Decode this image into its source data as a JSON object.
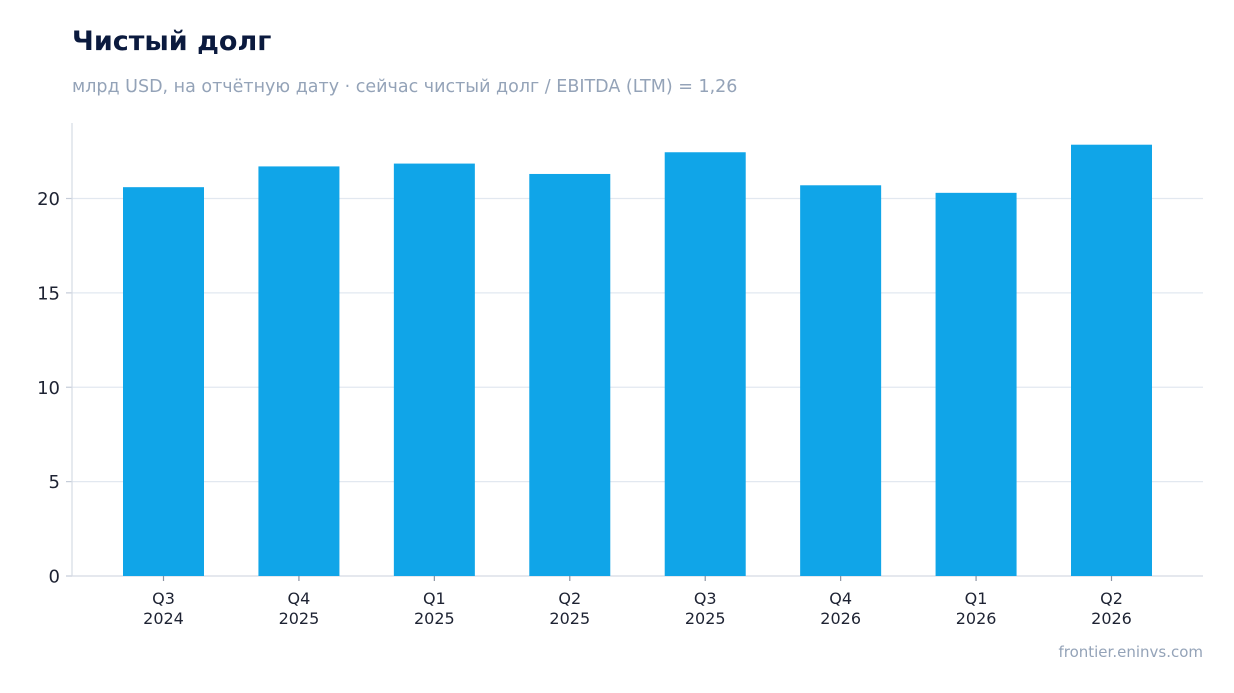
{
  "chart_data": {
    "type": "bar",
    "title": "Чистый долг",
    "subtitle": "млрд USD, на отчётную дату · сейчас чистый долг / EBITDA (LTM) = 1,26",
    "categories": [
      [
        "Q3",
        "2024"
      ],
      [
        "Q4",
        "2025"
      ],
      [
        "Q1",
        "2025"
      ],
      [
        "Q2",
        "2025"
      ],
      [
        "Q3",
        "2025"
      ],
      [
        "Q4",
        "2026"
      ],
      [
        "Q1",
        "2026"
      ],
      [
        "Q2",
        "2026"
      ]
    ],
    "values": [
      20.6,
      21.7,
      21.85,
      21.3,
      22.45,
      20.7,
      20.3,
      22.85
    ],
    "xlabel": "",
    "ylabel": "",
    "ylim": [
      0,
      24
    ],
    "yticks": [
      0,
      5,
      10,
      15,
      20
    ],
    "grid": true,
    "bar_color": "#10a5e8",
    "grid_color": "#e2e8f0"
  },
  "source": "frontier.eninvs.com"
}
